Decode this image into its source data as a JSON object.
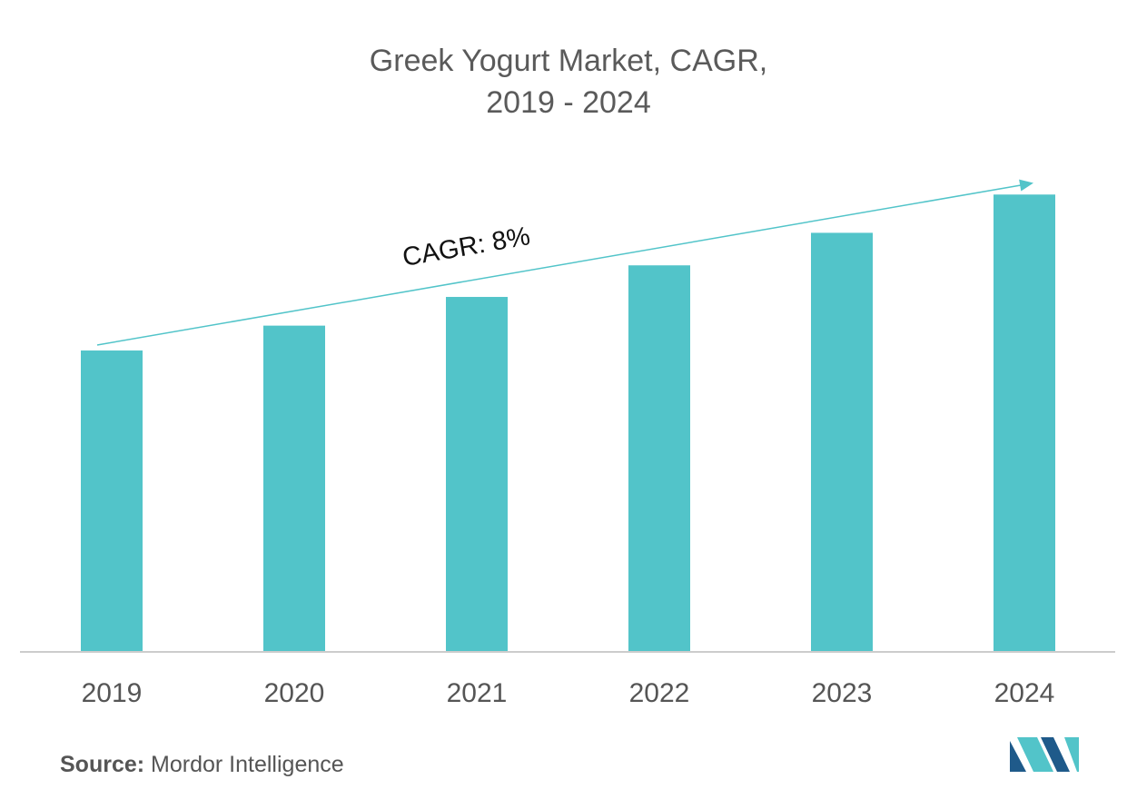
{
  "chart_data": {
    "type": "bar",
    "title_line1": "Greek Yogurt Market, CAGR,",
    "title_line2": "2019 - 2024",
    "categories": [
      "2019",
      "2020",
      "2021",
      "2022",
      "2023",
      "2024"
    ],
    "values": [
      315,
      341,
      371,
      404,
      438,
      478
    ],
    "ylim": [
      0,
      520
    ],
    "grid": false,
    "annotation": "CAGR: 8%",
    "colors": {
      "bar": "#52c4c9",
      "arrow": "#52c4c9",
      "axis": "#cccccc"
    }
  },
  "source": {
    "label": "Source:",
    "text": "Mordor Intelligence"
  },
  "logo": {
    "icon": "mordor-intelligence-logo-icon",
    "colors": [
      "#1f5a8a",
      "#52c4c9"
    ]
  }
}
